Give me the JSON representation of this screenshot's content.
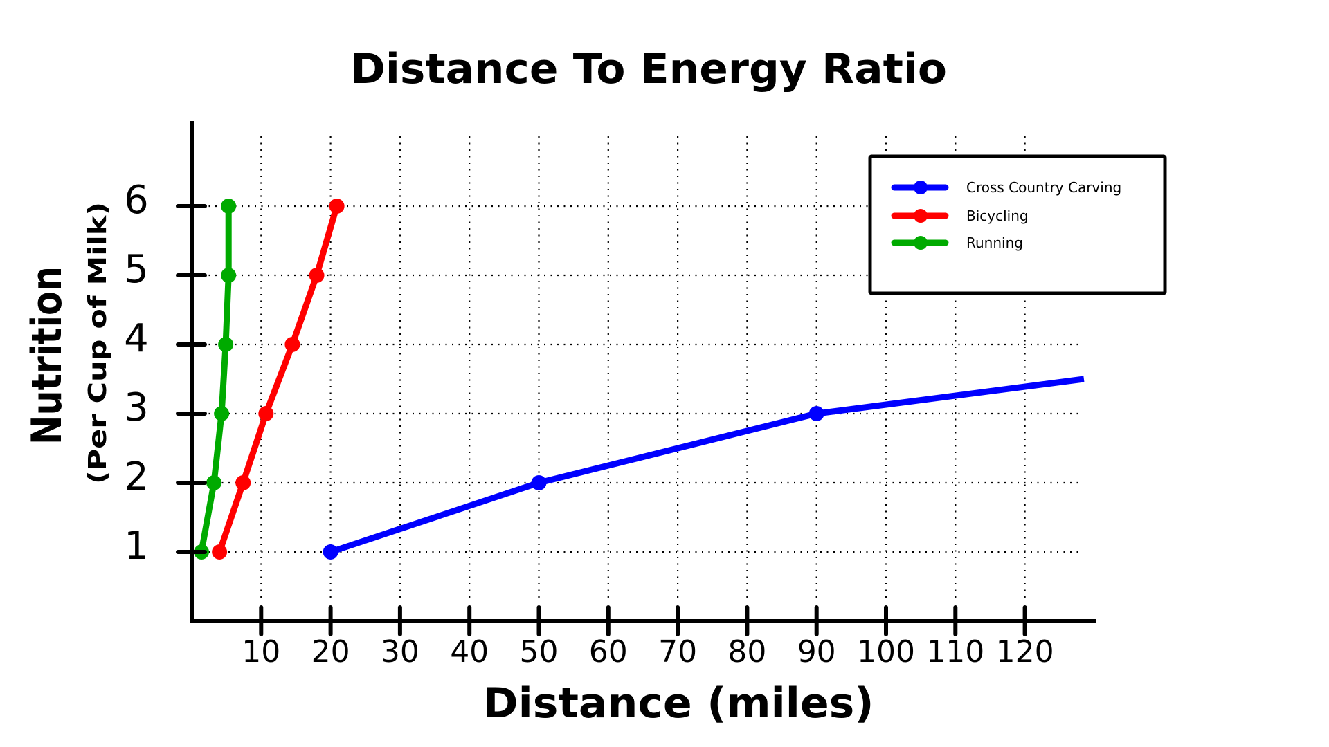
{
  "chart_data": {
    "type": "line",
    "title": "Distance To Energy Ratio",
    "xlabel": "Distance (miles)",
    "ylabel": "Nutrition",
    "ylabel_sub": "(Per Cup of Milk)",
    "xlim": [
      0,
      128
    ],
    "ylim": [
      0,
      7
    ],
    "x_ticks": [
      10,
      20,
      30,
      40,
      50,
      60,
      70,
      80,
      90,
      100,
      110,
      120
    ],
    "x_tick_labels": [
      "10",
      "20",
      "30",
      "40",
      "50",
      "60",
      "70",
      "80",
      "90",
      "100",
      "110",
      "120"
    ],
    "y_ticks": [
      1,
      2,
      3,
      4,
      5,
      6
    ],
    "y_tick_labels": [
      "1",
      "2",
      "3",
      "4",
      "5",
      "6"
    ],
    "grid": true,
    "legend_position": "top-right",
    "series": [
      {
        "name": "Cross Country Carving",
        "color": "#0000ff",
        "points": [
          [
            20,
            1
          ],
          [
            50,
            2
          ],
          [
            90,
            3
          ]
        ],
        "continues_to": [
          128.5,
          3.5
        ]
      },
      {
        "name": "Bicycling",
        "color": "#ff0000",
        "points": [
          [
            4.0,
            1
          ],
          [
            7.4,
            2
          ],
          [
            10.7,
            3
          ],
          [
            14.5,
            4
          ],
          [
            18.0,
            5
          ],
          [
            20.9,
            6
          ]
        ]
      },
      {
        "name": "Running",
        "color": "#00aa00",
        "points": [
          [
            1.4,
            1
          ],
          [
            3.2,
            2
          ],
          [
            4.3,
            3
          ],
          [
            4.9,
            4
          ],
          [
            5.3,
            5
          ],
          [
            5.3,
            6
          ]
        ]
      }
    ]
  }
}
